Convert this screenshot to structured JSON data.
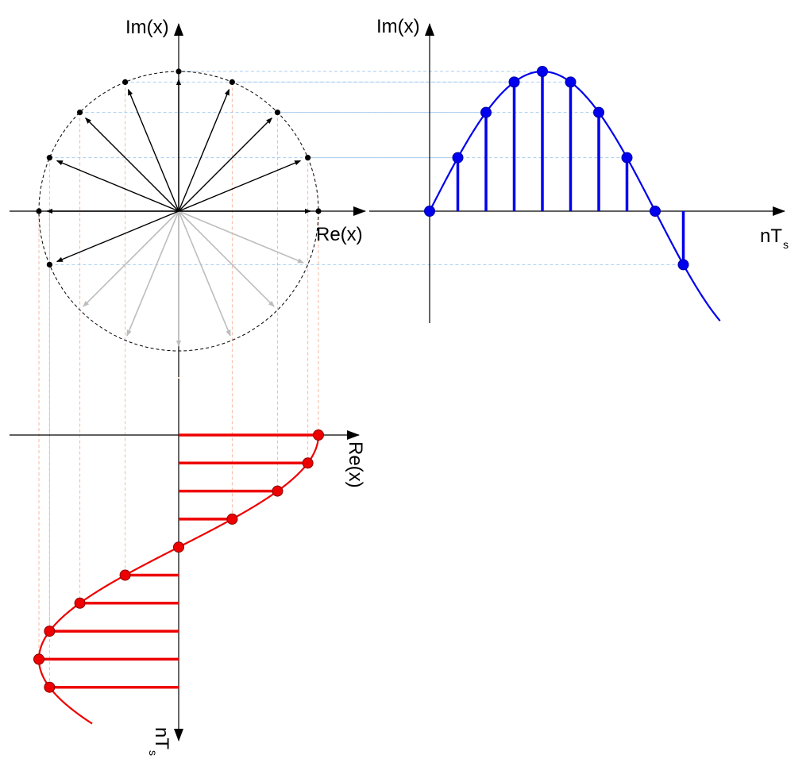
{
  "labels": {
    "im_circle": "Im(x)",
    "re_circle": "Re(x)",
    "im_stem": "Im(x)",
    "nts_right_main": "nT",
    "nts_right_sub": "s",
    "re_stem": "Re(x)",
    "nts_bottom_main": "nT",
    "nts_bottom_sub": "s"
  },
  "colors": {
    "axis": "#000000",
    "phasor_dark": "#000000",
    "phasor_light": "#bdbdbd",
    "circle": "#000000",
    "imag_series": "#0000ee",
    "real_series": "#ee0000",
    "guide_vertical": "#f4b9a0",
    "guide_horizontal": "#a9cdf0"
  },
  "chart_data": {
    "type": "phasor-projection",
    "angular_step_deg": 22.5,
    "sample_index": [
      0,
      1,
      2,
      3,
      4,
      5,
      6,
      7,
      8,
      9
    ],
    "phasor_angles_deg": [
      0,
      22.5,
      45,
      67.5,
      90,
      112.5,
      135,
      157.5,
      180,
      202.5
    ],
    "real_part": [
      1.0,
      0.924,
      0.707,
      0.383,
      0.0,
      -0.383,
      -0.707,
      -0.924,
      -1.0,
      -0.924
    ],
    "imag_part": [
      0.0,
      0.383,
      0.707,
      0.924,
      1.0,
      0.924,
      0.707,
      0.383,
      0.0,
      -0.383
    ],
    "light_phasor_angles_deg": [
      225,
      247.5,
      270,
      292.5,
      315,
      337.5
    ],
    "curve_extent_samples": [
      0,
      10.3
    ]
  }
}
